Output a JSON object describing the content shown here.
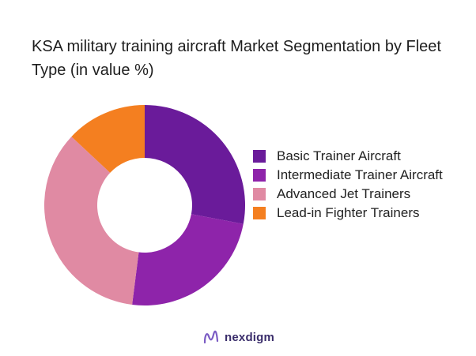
{
  "chart_data": {
    "type": "pie",
    "title": "KSA military training aircraft Market Segmentation by Fleet Type (in value %)",
    "donut": true,
    "legend_position": "right",
    "categories": [
      "Basic Trainer Aircraft",
      "Intermediate Trainer Aircraft",
      "Advanced Jet Trainers",
      "Lead-in Fighter Trainers"
    ],
    "values": [
      28,
      24,
      35,
      13
    ],
    "colors": [
      "#6a1b9a",
      "#8e24aa",
      "#e08aa3",
      "#f47f20"
    ]
  },
  "brand": {
    "name": "nexdigm",
    "color": "#3a2d6b"
  }
}
